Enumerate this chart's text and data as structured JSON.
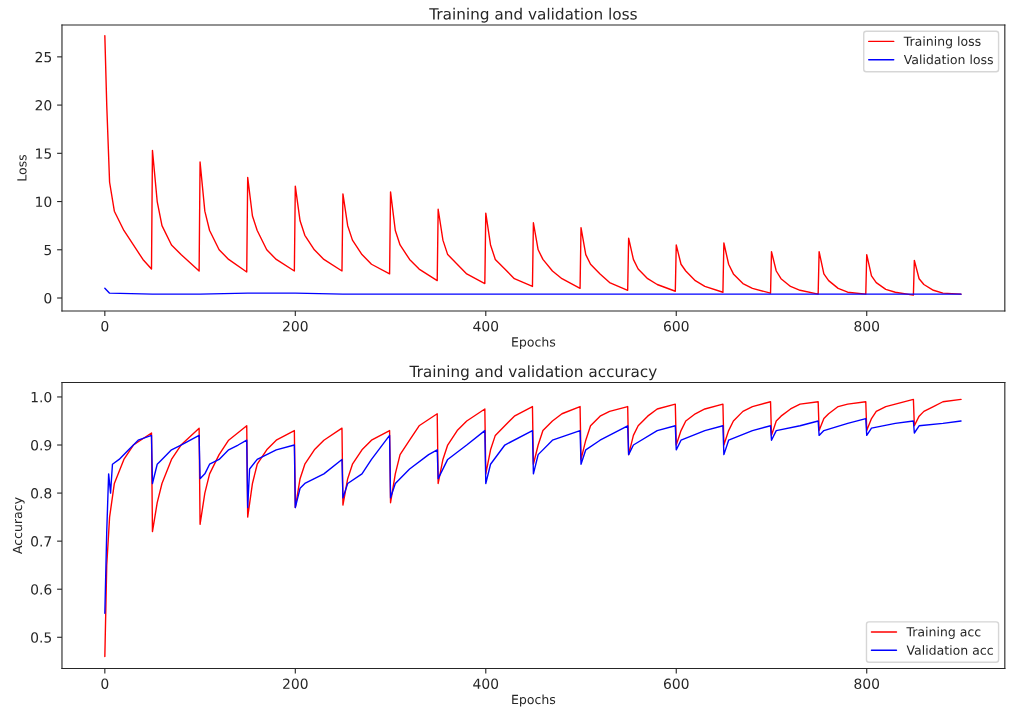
{
  "chart_data": [
    {
      "type": "line",
      "title": "Training and validation loss",
      "xlabel": "Epochs",
      "ylabel": "Loss",
      "xlim": [
        -45,
        945
      ],
      "xticks": [
        0,
        200,
        400,
        600,
        800
      ],
      "ylim": [
        -1.35,
        28.3
      ],
      "yticks": [
        0,
        5,
        10,
        15,
        20,
        25
      ],
      "grid": false,
      "legend": "top right",
      "marker": "none",
      "line_style": "solid",
      "series": [
        {
          "name": "Training loss",
          "color": "#ff0000",
          "x": [
            0,
            2,
            5,
            10,
            20,
            30,
            40,
            49,
            50,
            55,
            60,
            70,
            80,
            99,
            100,
            105,
            110,
            120,
            130,
            149,
            150,
            155,
            160,
            170,
            180,
            199,
            200,
            205,
            210,
            220,
            230,
            249,
            250,
            255,
            260,
            270,
            280,
            299,
            300,
            305,
            310,
            320,
            330,
            349,
            350,
            355,
            360,
            370,
            380,
            399,
            400,
            405,
            410,
            420,
            430,
            449,
            450,
            455,
            460,
            470,
            480,
            499,
            500,
            505,
            510,
            520,
            530,
            549,
            550,
            555,
            560,
            570,
            580,
            599,
            600,
            605,
            610,
            620,
            630,
            649,
            650,
            655,
            660,
            670,
            680,
            699,
            700,
            705,
            710,
            720,
            730,
            749,
            750,
            755,
            760,
            770,
            780,
            799,
            800,
            805,
            810,
            820,
            830,
            849,
            850,
            855,
            860,
            870,
            880,
            899
          ],
          "values": [
            27.2,
            20,
            12,
            9,
            7,
            5.5,
            4,
            3,
            15.3,
            10,
            7.5,
            5.5,
            4.5,
            2.8,
            14.1,
            9,
            7,
            5,
            4,
            2.7,
            12.5,
            8.5,
            7,
            5,
            4,
            2.8,
            11.6,
            8,
            6.5,
            5,
            4,
            2.8,
            10.8,
            7.5,
            6,
            4.5,
            3.5,
            2.5,
            11,
            7,
            5.5,
            4,
            3,
            1.8,
            9.2,
            6,
            4.5,
            3.5,
            2.5,
            1.5,
            8.8,
            5.5,
            4,
            3,
            2,
            1.2,
            7.8,
            5,
            4,
            2.8,
            2,
            1,
            7.3,
            4.5,
            3.5,
            2.5,
            1.6,
            0.8,
            6.2,
            4,
            3,
            2,
            1.4,
            0.7,
            5.5,
            3.5,
            2.8,
            1.8,
            1.2,
            0.6,
            5.7,
            3.5,
            2.5,
            1.5,
            1,
            0.5,
            4.8,
            2.8,
            2,
            1.2,
            0.8,
            0.4,
            4.8,
            2.5,
            1.8,
            1,
            0.6,
            0.4,
            4.5,
            2.3,
            1.6,
            0.9,
            0.6,
            0.3,
            3.9,
            2,
            1.4,
            0.8,
            0.5,
            0.4
          ]
        },
        {
          "name": "Validation loss",
          "color": "#0000ff",
          "x": [
            0,
            5,
            50,
            100,
            150,
            200,
            250,
            300,
            350,
            400,
            450,
            500,
            550,
            600,
            650,
            700,
            750,
            800,
            850,
            899
          ],
          "values": [
            1,
            0.5,
            0.4,
            0.4,
            0.5,
            0.5,
            0.4,
            0.4,
            0.4,
            0.4,
            0.4,
            0.4,
            0.4,
            0.4,
            0.4,
            0.4,
            0.4,
            0.4,
            0.4,
            0.4
          ]
        }
      ]
    },
    {
      "type": "line",
      "title": "Training and validation accuracy",
      "xlabel": "Epochs",
      "ylabel": "Accuracy",
      "xlim": [
        -45,
        945
      ],
      "xticks": [
        0,
        200,
        400,
        600,
        800
      ],
      "ylim": [
        0.435,
        1.03
      ],
      "yticks": [
        0.5,
        0.6,
        0.7,
        0.8,
        0.9,
        {
          "value": 1,
          "label": "1.0"
        }
      ],
      "grid": false,
      "legend": "bottom right",
      "marker": "none",
      "line_style": "solid",
      "series": [
        {
          "name": "Training acc",
          "color": "#ff0000",
          "x": [
            0,
            2,
            5,
            10,
            20,
            30,
            49,
            50,
            55,
            60,
            70,
            80,
            99,
            100,
            105,
            110,
            120,
            130,
            149,
            150,
            155,
            160,
            170,
            180,
            199,
            200,
            205,
            210,
            220,
            230,
            249,
            250,
            255,
            260,
            270,
            280,
            299,
            300,
            305,
            310,
            320,
            330,
            349,
            350,
            355,
            360,
            370,
            380,
            399,
            400,
            405,
            410,
            420,
            430,
            449,
            450,
            455,
            460,
            470,
            480,
            499,
            500,
            505,
            510,
            520,
            530,
            549,
            550,
            555,
            560,
            570,
            580,
            599,
            600,
            605,
            610,
            620,
            630,
            649,
            650,
            655,
            660,
            670,
            680,
            699,
            700,
            705,
            710,
            720,
            730,
            749,
            750,
            755,
            760,
            770,
            780,
            799,
            800,
            805,
            810,
            820,
            830,
            849,
            850,
            855,
            860,
            870,
            880,
            899
          ],
          "values": [
            0.46,
            0.65,
            0.75,
            0.82,
            0.87,
            0.9,
            0.925,
            0.72,
            0.78,
            0.82,
            0.87,
            0.9,
            0.935,
            0.735,
            0.8,
            0.84,
            0.88,
            0.91,
            0.94,
            0.75,
            0.82,
            0.86,
            0.89,
            0.91,
            0.93,
            0.77,
            0.83,
            0.86,
            0.89,
            0.91,
            0.935,
            0.775,
            0.83,
            0.86,
            0.89,
            0.91,
            0.93,
            0.78,
            0.84,
            0.88,
            0.91,
            0.94,
            0.965,
            0.82,
            0.87,
            0.9,
            0.93,
            0.95,
            0.975,
            0.84,
            0.89,
            0.92,
            0.94,
            0.96,
            0.98,
            0.86,
            0.9,
            0.93,
            0.95,
            0.965,
            0.98,
            0.87,
            0.91,
            0.94,
            0.96,
            0.97,
            0.98,
            0.88,
            0.92,
            0.94,
            0.96,
            0.975,
            0.985,
            0.9,
            0.93,
            0.95,
            0.965,
            0.975,
            0.985,
            0.9,
            0.93,
            0.95,
            0.97,
            0.98,
            0.99,
            0.92,
            0.95,
            0.96,
            0.975,
            0.985,
            0.99,
            0.93,
            0.955,
            0.965,
            0.98,
            0.985,
            0.99,
            0.93,
            0.955,
            0.97,
            0.98,
            0.985,
            0.995,
            0.94,
            0.96,
            0.97,
            0.98,
            0.99,
            0.995
          ]
        },
        {
          "name": "Validation acc",
          "color": "#0000ff",
          "x": [
            0,
            2,
            4,
            6,
            8,
            15,
            25,
            35,
            49,
            50,
            55,
            60,
            70,
            80,
            99,
            100,
            105,
            110,
            120,
            130,
            140,
            149,
            150,
            152,
            160,
            170,
            180,
            199,
            200,
            205,
            210,
            230,
            249,
            250,
            255,
            270,
            280,
            299,
            300,
            305,
            320,
            340,
            349,
            350,
            360,
            380,
            399,
            400,
            405,
            420,
            449,
            450,
            455,
            470,
            499,
            500,
            505,
            520,
            549,
            550,
            555,
            580,
            599,
            600,
            605,
            630,
            649,
            650,
            655,
            680,
            699,
            700,
            705,
            730,
            749,
            750,
            755,
            780,
            799,
            800,
            805,
            830,
            849,
            850,
            855,
            880,
            899
          ],
          "values": [
            0.55,
            0.72,
            0.84,
            0.8,
            0.86,
            0.87,
            0.89,
            0.91,
            0.92,
            0.82,
            0.86,
            0.87,
            0.89,
            0.9,
            0.92,
            0.83,
            0.84,
            0.86,
            0.87,
            0.89,
            0.9,
            0.91,
            0.77,
            0.85,
            0.87,
            0.88,
            0.89,
            0.9,
            0.77,
            0.81,
            0.82,
            0.84,
            0.87,
            0.79,
            0.82,
            0.84,
            0.87,
            0.92,
            0.79,
            0.82,
            0.85,
            0.88,
            0.89,
            0.83,
            0.87,
            0.9,
            0.93,
            0.82,
            0.86,
            0.9,
            0.93,
            0.84,
            0.88,
            0.91,
            0.93,
            0.86,
            0.89,
            0.91,
            0.94,
            0.88,
            0.9,
            0.93,
            0.94,
            0.89,
            0.91,
            0.93,
            0.94,
            0.88,
            0.91,
            0.93,
            0.94,
            0.91,
            0.93,
            0.94,
            0.95,
            0.92,
            0.93,
            0.945,
            0.955,
            0.92,
            0.935,
            0.945,
            0.95,
            0.925,
            0.94,
            0.945,
            0.95
          ]
        }
      ]
    }
  ]
}
